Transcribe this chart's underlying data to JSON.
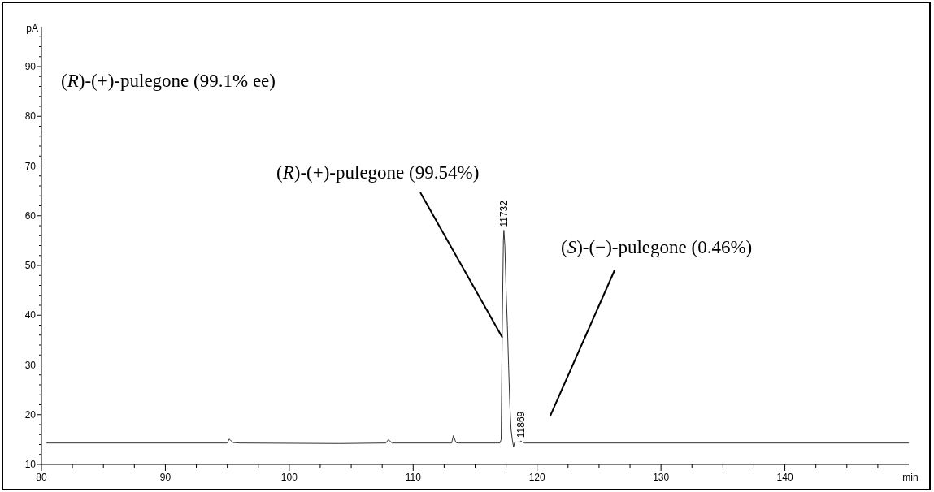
{
  "chart_data": {
    "type": "line",
    "xlabel": "min",
    "ylabel": "pA",
    "x": [
      80.4,
      95.0,
      95.15,
      95.25,
      95.45,
      96.0,
      104.0,
      107.8,
      108.0,
      108.3,
      113.1,
      113.25,
      113.45,
      113.6,
      117.0,
      117.1,
      117.2,
      117.28,
      117.32,
      117.4,
      117.5,
      117.6,
      117.7,
      117.8,
      117.9,
      118.0,
      118.1,
      118.2,
      118.6,
      118.69,
      118.8,
      119.0,
      150.0
    ],
    "series": [
      {
        "color": "#333333",
        "values": [
          14.3,
          14.3,
          15.1,
          14.9,
          14.4,
          14.3,
          14.2,
          14.3,
          15.0,
          14.3,
          14.3,
          15.8,
          14.4,
          14.3,
          14.3,
          15.0,
          40.0,
          55.0,
          57.1,
          54.0,
          45.0,
          38.0,
          30.0,
          22.0,
          17.0,
          15.0,
          13.5,
          14.5,
          14.5,
          14.7,
          14.5,
          14.3,
          14.3
        ]
      }
    ],
    "xlim": [
      80,
      150
    ],
    "ylim": [
      10,
      98
    ],
    "xticks": [
      80,
      {
        "value": 82.5,
        "label": null
      },
      {
        "value": 85,
        "label": null
      },
      {
        "value": 87.5,
        "label": null
      },
      90,
      {
        "value": 92.5,
        "label": null
      },
      {
        "value": 95,
        "label": null
      },
      {
        "value": 97.5,
        "label": null
      },
      100,
      {
        "value": 102.5,
        "label": null
      },
      {
        "value": 105,
        "label": null
      },
      {
        "value": 107.5,
        "label": null
      },
      110,
      {
        "value": 112.5,
        "label": null
      },
      {
        "value": 115,
        "label": null
      },
      {
        "value": 117.5,
        "label": null
      },
      120,
      {
        "value": 122.5,
        "label": null
      },
      {
        "value": 125,
        "label": null
      },
      {
        "value": 127.5,
        "label": null
      },
      130,
      {
        "value": 132.5,
        "label": null
      },
      {
        "value": 135,
        "label": null
      },
      {
        "value": 137.5,
        "label": null
      },
      140,
      {
        "value": 142.5,
        "label": null
      },
      {
        "value": 145,
        "label": null
      },
      {
        "value": 147.5,
        "label": null
      }
    ],
    "yticks": [
      10,
      {
        "value": 12,
        "label": null
      },
      {
        "value": 14,
        "label": null
      },
      {
        "value": 16,
        "label": null
      },
      {
        "value": 18,
        "label": null
      },
      20,
      {
        "value": 22,
        "label": null
      },
      {
        "value": 24,
        "label": null
      },
      {
        "value": 26,
        "label": null
      },
      {
        "value": 28,
        "label": null
      },
      30,
      {
        "value": 32,
        "label": null
      },
      {
        "value": 34,
        "label": null
      },
      {
        "value": 36,
        "label": null
      },
      {
        "value": 38,
        "label": null
      },
      40,
      {
        "value": 42,
        "label": null
      },
      {
        "value": 44,
        "label": null
      },
      {
        "value": 46,
        "label": null
      },
      {
        "value": 48,
        "label": null
      },
      50,
      {
        "value": 52,
        "label": null
      },
      {
        "value": 54,
        "label": null
      },
      {
        "value": 56,
        "label": null
      },
      {
        "value": 58,
        "label": null
      },
      60,
      {
        "value": 62,
        "label": null
      },
      {
        "value": 64,
        "label": null
      },
      {
        "value": 66,
        "label": null
      },
      {
        "value": 68,
        "label": null
      },
      70,
      {
        "value": 72,
        "label": null
      },
      {
        "value": 74,
        "label": null
      },
      {
        "value": 76,
        "label": null
      },
      {
        "value": 78,
        "label": null
      },
      80,
      {
        "value": 82,
        "label": null
      },
      {
        "value": 84,
        "label": null
      },
      {
        "value": 86,
        "label": null
      },
      {
        "value": 88,
        "label": null
      },
      90,
      {
        "value": 92,
        "label": null
      },
      {
        "value": 94,
        "label": null
      },
      {
        "value": 96,
        "label": null
      }
    ],
    "grid": false,
    "legend": false,
    "marker": "none",
    "line_style": "solid",
    "annotations": [
      "(R)-(+)-pulegone (99.1% ee)",
      {
        "text": "(R)-(+)-pulegone (99.54%)",
        "x": 117.2,
        "y": 35.5
      },
      "(S)-(−)-pulegone (0.46%)",
      {
        "text": "11732",
        "x": 117.32,
        "y": 57.1
      },
      {
        "text": "11869",
        "x": 118.69,
        "y": 14.7
      }
    ]
  }
}
